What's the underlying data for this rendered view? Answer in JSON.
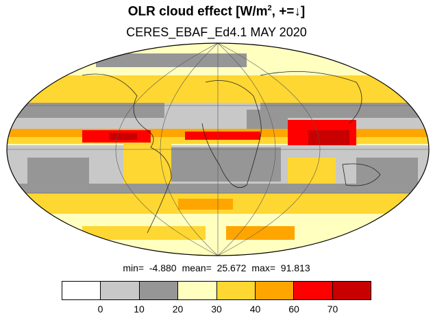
{
  "title": {
    "main_prefix": "OLR cloud effect [W/m",
    "main_sup": "2",
    "main_suffix": ", +=↓]",
    "subtitle": "CERES_EBAF_Ed4.1 MAY 2020"
  },
  "stats": {
    "min": "min=  -4.880",
    "mean": "mean=  25.672",
    "max": "max=  91.813"
  },
  "colorbar": {
    "colors": [
      "#ffffff",
      "#c8c8c8",
      "#969696",
      "#ffffc0",
      "#ffd732",
      "#ffa500",
      "#ff0000",
      "#c80000"
    ],
    "tick_labels": [
      "0",
      "10",
      "20",
      "30",
      "40",
      "60",
      "70"
    ]
  }
}
